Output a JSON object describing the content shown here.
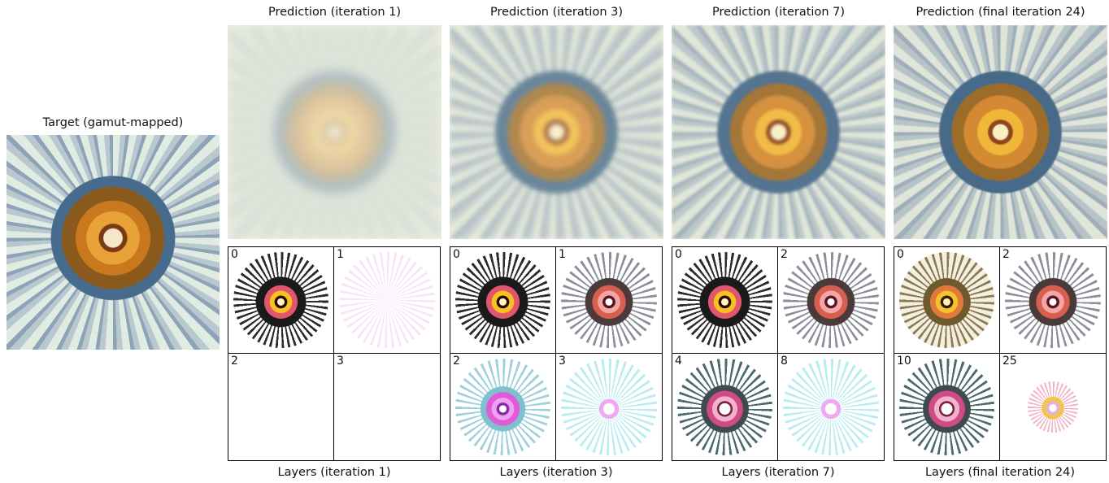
{
  "target": {
    "caption": "Target (gamut-mapped)"
  },
  "predictions": [
    {
      "caption": "Prediction (iteration 1)"
    },
    {
      "caption": "Prediction (iteration 3)"
    },
    {
      "caption": "Prediction (iteration 7)"
    },
    {
      "caption": "Prediction (final iteration 24)"
    }
  ],
  "layer_grids": [
    {
      "caption": "Layers (iteration 1)",
      "cells": [
        "0",
        "1",
        "2",
        "3"
      ]
    },
    {
      "caption": "Layers (iteration 3)",
      "cells": [
        "0",
        "1",
        "2",
        "3"
      ]
    },
    {
      "caption": "Layers (iteration 7)",
      "cells": [
        "0",
        "2",
        "4",
        "8"
      ]
    },
    {
      "caption": "Layers (final iteration 24)",
      "cells": [
        "0",
        "2",
        "10",
        "25"
      ]
    }
  ]
}
